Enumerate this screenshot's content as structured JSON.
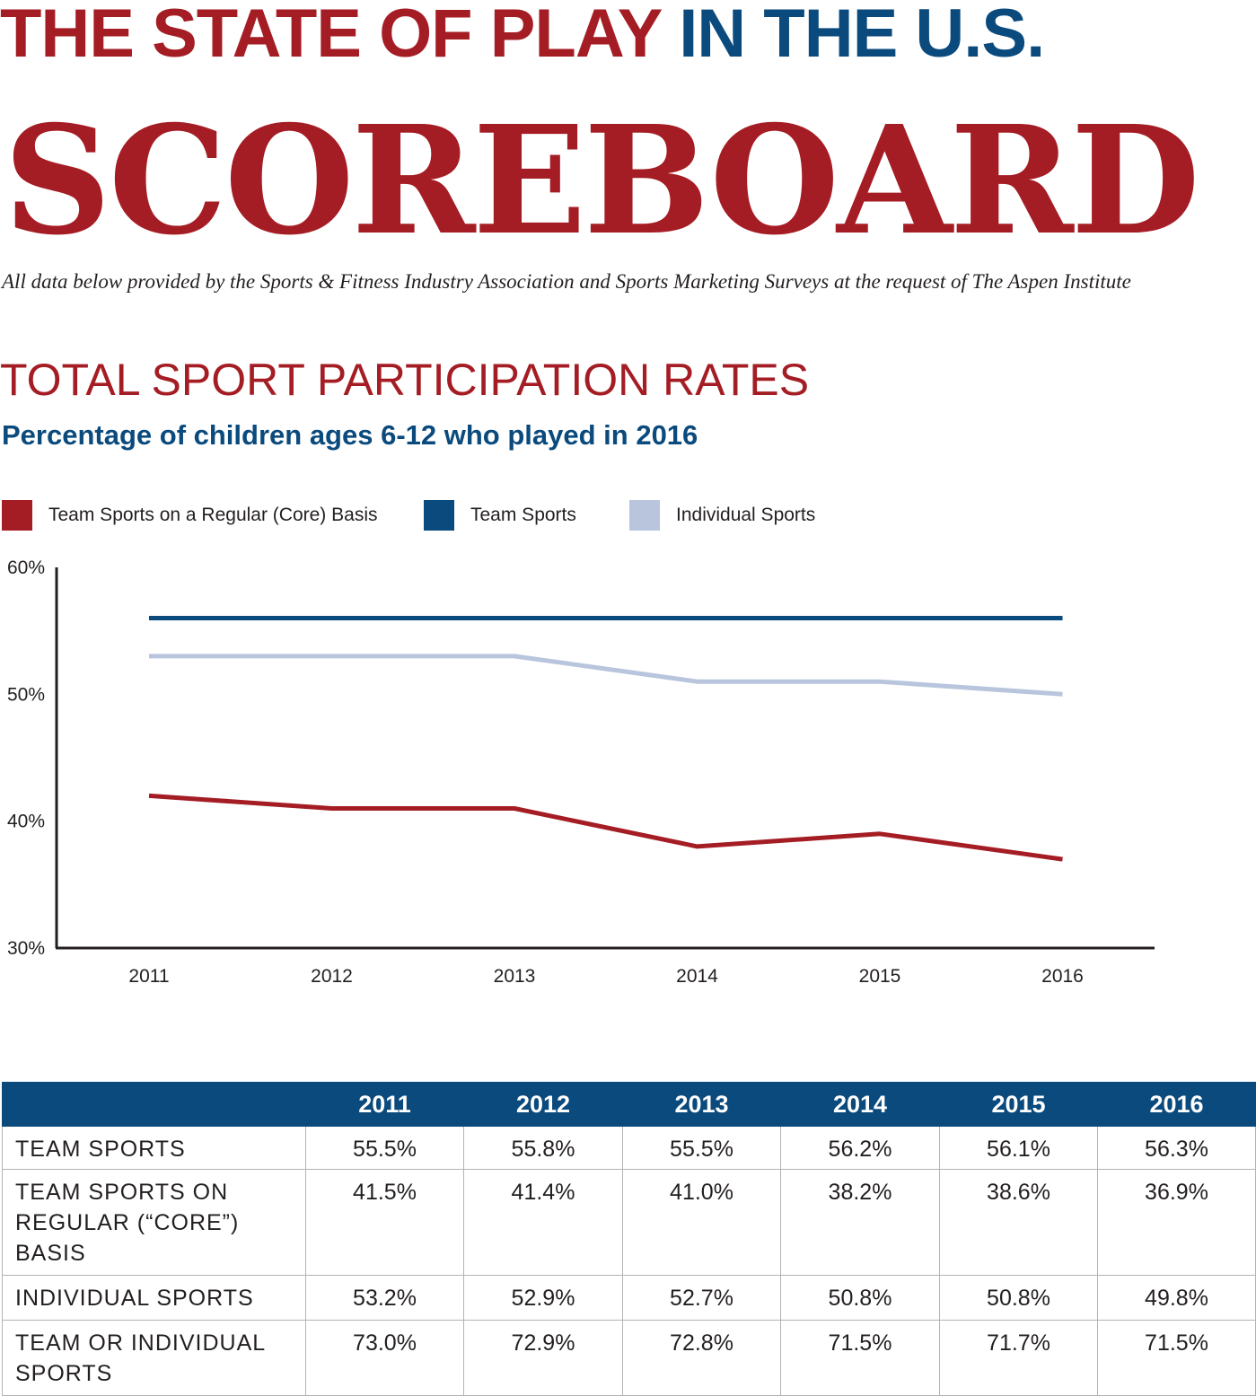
{
  "header": {
    "title_part1": "THE STATE OF PLAY",
    "title_part2": "IN THE U.S.",
    "wordmark": "SCOREBOARD",
    "credit": "All data below provided by the Sports & Fitness Industry Association and Sports Marketing Surveys at the request of The Aspen Institute"
  },
  "section": {
    "title": "TOTAL SPORT PARTICIPATION RATES",
    "subtitle": "Percentage of children ages 6-12 who played in 2016"
  },
  "colors": {
    "red": "#a51d24",
    "navy": "#0a4a7d",
    "light_blue": "#b8c5dd"
  },
  "legend": [
    {
      "label": "Team Sports on a Regular (Core) Basis",
      "color": "#a51d24"
    },
    {
      "label": "Team Sports",
      "color": "#0a4a7d"
    },
    {
      "label": "Individual Sports",
      "color": "#b8c5dd"
    }
  ],
  "chart_data": {
    "type": "line",
    "x": [
      "2011",
      "2012",
      "2013",
      "2014",
      "2015",
      "2016"
    ],
    "y_ticks": [
      "60%",
      "50%",
      "40%",
      "30%"
    ],
    "ylim": [
      30,
      60
    ],
    "grid": false,
    "legend_position": "top-left",
    "series": [
      {
        "name": "Team Sports",
        "color": "#0a4a7d",
        "values": [
          56,
          56,
          56,
          56,
          56,
          56
        ]
      },
      {
        "name": "Individual Sports",
        "color": "#b8c5dd",
        "values": [
          53,
          53,
          53,
          51,
          51,
          50
        ]
      },
      {
        "name": "Team Sports on a Regular (Core) Basis",
        "color": "#a51d24",
        "values": [
          42,
          41,
          41,
          38,
          39,
          37
        ]
      }
    ]
  },
  "table": {
    "headers": [
      "",
      "2011",
      "2012",
      "2013",
      "2014",
      "2015",
      "2016"
    ],
    "rows": [
      {
        "label": "TEAM SPORTS",
        "values": [
          "55.5%",
          "55.8%",
          "55.5%",
          "56.2%",
          "56.1%",
          "56.3%"
        ]
      },
      {
        "label": "TEAM SPORTS ON REGULAR (“CORE”) BASIS",
        "values": [
          "41.5%",
          "41.4%",
          "41.0%",
          "38.2%",
          "38.6%",
          "36.9%"
        ]
      },
      {
        "label": "INDIVIDUAL SPORTS",
        "values": [
          "53.2%",
          "52.9%",
          "52.7%",
          "50.8%",
          "50.8%",
          "49.8%"
        ]
      },
      {
        "label": "TEAM OR  INDIVIDUAL SPORTS",
        "values": [
          "73.0%",
          "72.9%",
          "72.8%",
          "71.5%",
          "71.7%",
          "71.5%"
        ]
      }
    ]
  }
}
